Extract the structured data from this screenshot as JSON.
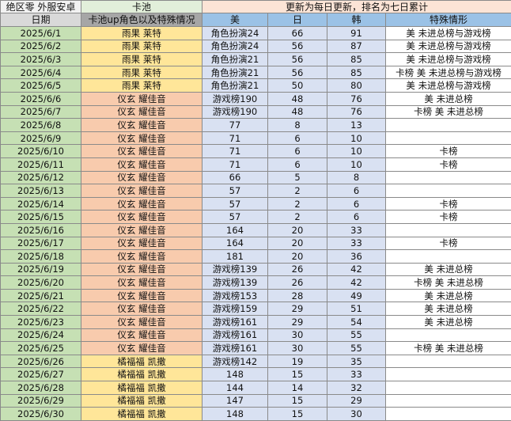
{
  "header": {
    "title": "绝区零 外服安卓",
    "pool_group": "卡池",
    "update_note": "更新为每日更新，排名为七日累计",
    "col_date": "日期",
    "col_pool": "卡池up角色以及特殊情况",
    "col_us": "美",
    "col_jp": "日",
    "col_kr": "韩",
    "col_special": "特殊情形"
  },
  "colors": {
    "date": "#c6e0b4",
    "pool_yellow": "#ffe699",
    "pool_orange": "#f8cbad",
    "rank": "#d9e1f2",
    "header_blue": "#9bc2e6"
  },
  "rows": [
    {
      "date": "2025/6/1",
      "pool": "雨果 莱特",
      "pool_color": "yellow",
      "us": "角色扮演24",
      "jp": "66",
      "kr": "91",
      "special": "美 未进总榜与游戏榜"
    },
    {
      "date": "2025/6/2",
      "pool": "雨果 莱特",
      "pool_color": "yellow",
      "us": "角色扮演24",
      "jp": "56",
      "kr": "87",
      "special": "美 未进总榜与游戏榜"
    },
    {
      "date": "2025/6/3",
      "pool": "雨果 莱特",
      "pool_color": "yellow",
      "us": "角色扮演21",
      "jp": "56",
      "kr": "85",
      "special": "美 未进总榜与游戏榜"
    },
    {
      "date": "2025/6/4",
      "pool": "雨果 莱特",
      "pool_color": "yellow",
      "us": "角色扮演21",
      "jp": "56",
      "kr": "85",
      "special": "卡榜 美 未进总榜与游戏榜"
    },
    {
      "date": "2025/6/5",
      "pool": "雨果 莱特",
      "pool_color": "yellow",
      "us": "角色扮演21",
      "jp": "50",
      "kr": "80",
      "special": "美 未进总榜与游戏榜"
    },
    {
      "date": "2025/6/6",
      "pool": "仪玄 耀佳音",
      "pool_color": "orange",
      "us": "游戏榜190",
      "jp": "48",
      "kr": "76",
      "special": "美 未进总榜"
    },
    {
      "date": "2025/6/7",
      "pool": "仪玄 耀佳音",
      "pool_color": "orange",
      "us": "游戏榜190",
      "jp": "48",
      "kr": "76",
      "special": "卡榜 美 未进总榜"
    },
    {
      "date": "2025/6/8",
      "pool": "仪玄 耀佳音",
      "pool_color": "orange",
      "us": "77",
      "jp": "8",
      "kr": "13",
      "special": ""
    },
    {
      "date": "2025/6/9",
      "pool": "仪玄 耀佳音",
      "pool_color": "orange",
      "us": "71",
      "jp": "6",
      "kr": "10",
      "special": ""
    },
    {
      "date": "2025/6/10",
      "pool": "仪玄 耀佳音",
      "pool_color": "orange",
      "us": "71",
      "jp": "6",
      "kr": "10",
      "special": "卡榜"
    },
    {
      "date": "2025/6/11",
      "pool": "仪玄 耀佳音",
      "pool_color": "orange",
      "us": "71",
      "jp": "6",
      "kr": "10",
      "special": "卡榜"
    },
    {
      "date": "2025/6/12",
      "pool": "仪玄 耀佳音",
      "pool_color": "orange",
      "us": "66",
      "jp": "5",
      "kr": "8",
      "special": ""
    },
    {
      "date": "2025/6/13",
      "pool": "仪玄 耀佳音",
      "pool_color": "orange",
      "us": "57",
      "jp": "2",
      "kr": "6",
      "special": ""
    },
    {
      "date": "2025/6/14",
      "pool": "仪玄 耀佳音",
      "pool_color": "orange",
      "us": "57",
      "jp": "2",
      "kr": "6",
      "special": "卡榜"
    },
    {
      "date": "2025/6/15",
      "pool": "仪玄 耀佳音",
      "pool_color": "orange",
      "us": "57",
      "jp": "2",
      "kr": "6",
      "special": "卡榜"
    },
    {
      "date": "2025/6/16",
      "pool": "仪玄 耀佳音",
      "pool_color": "orange",
      "us": "164",
      "jp": "20",
      "kr": "33",
      "special": ""
    },
    {
      "date": "2025/6/17",
      "pool": "仪玄 耀佳音",
      "pool_color": "orange",
      "us": "164",
      "jp": "20",
      "kr": "33",
      "special": "卡榜"
    },
    {
      "date": "2025/6/18",
      "pool": "仪玄 耀佳音",
      "pool_color": "orange",
      "us": "181",
      "jp": "20",
      "kr": "36",
      "special": ""
    },
    {
      "date": "2025/6/19",
      "pool": "仪玄 耀佳音",
      "pool_color": "orange",
      "us": "游戏榜139",
      "jp": "26",
      "kr": "42",
      "special": "美 未进总榜"
    },
    {
      "date": "2025/6/20",
      "pool": "仪玄 耀佳音",
      "pool_color": "orange",
      "us": "游戏榜139",
      "jp": "26",
      "kr": "42",
      "special": "卡榜 美 未进总榜"
    },
    {
      "date": "2025/6/21",
      "pool": "仪玄 耀佳音",
      "pool_color": "orange",
      "us": "游戏榜153",
      "jp": "28",
      "kr": "49",
      "special": "美 未进总榜"
    },
    {
      "date": "2025/6/22",
      "pool": "仪玄 耀佳音",
      "pool_color": "orange",
      "us": "游戏榜159",
      "jp": "29",
      "kr": "51",
      "special": "美 未进总榜"
    },
    {
      "date": "2025/6/23",
      "pool": "仪玄 耀佳音",
      "pool_color": "orange",
      "us": "游戏榜161",
      "jp": "29",
      "kr": "54",
      "special": "美 未进总榜"
    },
    {
      "date": "2025/6/24",
      "pool": "仪玄 耀佳音",
      "pool_color": "orange",
      "us": "游戏榜161",
      "jp": "30",
      "kr": "55",
      "special": ""
    },
    {
      "date": "2025/6/25",
      "pool": "仪玄 耀佳音",
      "pool_color": "orange",
      "us": "游戏榜161",
      "jp": "30",
      "kr": "55",
      "special": "卡榜 美 未进总榜"
    },
    {
      "date": "2025/6/26",
      "pool": "橘福福 凯撒",
      "pool_color": "yellow",
      "us": "游戏榜142",
      "jp": "19",
      "kr": "35",
      "special": ""
    },
    {
      "date": "2025/6/27",
      "pool": "橘福福 凯撒",
      "pool_color": "yellow",
      "us": "148",
      "jp": "15",
      "kr": "33",
      "special": ""
    },
    {
      "date": "2025/6/28",
      "pool": "橘福福 凯撒",
      "pool_color": "yellow",
      "us": "144",
      "jp": "14",
      "kr": "32",
      "special": ""
    },
    {
      "date": "2025/6/29",
      "pool": "橘福福 凯撒",
      "pool_color": "yellow",
      "us": "147",
      "jp": "15",
      "kr": "29",
      "special": ""
    },
    {
      "date": "2025/6/30",
      "pool": "橘福福 凯撒",
      "pool_color": "yellow",
      "us": "148",
      "jp": "15",
      "kr": "30",
      "special": ""
    }
  ]
}
